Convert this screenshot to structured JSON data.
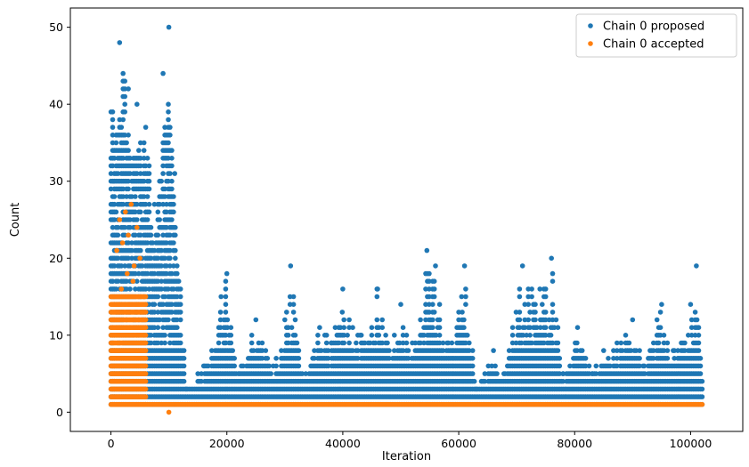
{
  "chart_data": {
    "type": "scatter",
    "title": "",
    "xlabel": "Iteration",
    "ylabel": "Count",
    "xlim": [
      -7000,
      109000
    ],
    "ylim": [
      -2.5,
      52.5
    ],
    "xticks": [
      0,
      20000,
      40000,
      60000,
      80000,
      100000
    ],
    "xtick_labels": [
      "0",
      "20000",
      "40000",
      "60000",
      "80000",
      "100000"
    ],
    "yticks": [
      0,
      10,
      20,
      30,
      40,
      50
    ],
    "ytick_labels": [
      "0",
      "10",
      "20",
      "30",
      "40",
      "50"
    ],
    "grid": false,
    "legend_position": "top-right",
    "legend": [
      "Chain 0 proposed",
      "Chain 0 accepted"
    ],
    "series": [
      {
        "name": "Chain 0 proposed",
        "color": "#1f77b4",
        "note_shape": "dense columns of integer counts per iteration",
        "x_range": [
          0,
          102000
        ],
        "envelope": [
          {
            "x": 0,
            "ymax": 39
          },
          {
            "x": 1500,
            "ymax": 48
          },
          {
            "x": 3000,
            "ymax": 42
          },
          {
            "x": 4500,
            "ymax": 40
          },
          {
            "x": 6000,
            "ymax": 37
          },
          {
            "x": 7500,
            "ymax": 27
          },
          {
            "x": 9000,
            "ymax": 44
          },
          {
            "x": 10000,
            "ymax": 50
          },
          {
            "x": 11000,
            "ymax": 31
          },
          {
            "x": 13000,
            "ymax": 3
          },
          {
            "x": 16000,
            "ymax": 6
          },
          {
            "x": 19000,
            "ymax": 15
          },
          {
            "x": 20000,
            "ymax": 18
          },
          {
            "x": 22000,
            "ymax": 5
          },
          {
            "x": 25000,
            "ymax": 12
          },
          {
            "x": 28000,
            "ymax": 6
          },
          {
            "x": 30000,
            "ymax": 12
          },
          {
            "x": 31000,
            "ymax": 19
          },
          {
            "x": 33000,
            "ymax": 5
          },
          {
            "x": 36000,
            "ymax": 11
          },
          {
            "x": 38000,
            "ymax": 9
          },
          {
            "x": 40000,
            "ymax": 16
          },
          {
            "x": 43000,
            "ymax": 10
          },
          {
            "x": 46000,
            "ymax": 16
          },
          {
            "x": 48000,
            "ymax": 8
          },
          {
            "x": 50000,
            "ymax": 14
          },
          {
            "x": 52000,
            "ymax": 9
          },
          {
            "x": 54500,
            "ymax": 21
          },
          {
            "x": 56000,
            "ymax": 19
          },
          {
            "x": 58000,
            "ymax": 9
          },
          {
            "x": 60500,
            "ymax": 15
          },
          {
            "x": 61000,
            "ymax": 19
          },
          {
            "x": 63000,
            "ymax": 3
          },
          {
            "x": 66000,
            "ymax": 8
          },
          {
            "x": 68000,
            "ymax": 5
          },
          {
            "x": 71000,
            "ymax": 19
          },
          {
            "x": 74000,
            "ymax": 16
          },
          {
            "x": 76000,
            "ymax": 20
          },
          {
            "x": 78000,
            "ymax": 5
          },
          {
            "x": 80500,
            "ymax": 11
          },
          {
            "x": 83000,
            "ymax": 5
          },
          {
            "x": 85000,
            "ymax": 8
          },
          {
            "x": 88000,
            "ymax": 9
          },
          {
            "x": 90000,
            "ymax": 12
          },
          {
            "x": 92000,
            "ymax": 6
          },
          {
            "x": 95000,
            "ymax": 14
          },
          {
            "x": 97000,
            "ymax": 8
          },
          {
            "x": 100000,
            "ymax": 14
          },
          {
            "x": 101000,
            "ymax": 19
          },
          {
            "x": 102000,
            "ymax": 4
          }
        ]
      },
      {
        "name": "Chain 0 accepted",
        "color": "#ff7f0e",
        "note_shape": "dense block of counts 1-15 early, constant near 1 afterwards",
        "segments": [
          {
            "x_range": [
              0,
              6000
            ],
            "ymin": 1,
            "ymax": 15
          },
          {
            "x_range": [
              6000,
              102000
            ],
            "ymin": 1,
            "ymax": 1
          }
        ],
        "scattered_points": [
          {
            "x": 1500,
            "y": 25
          },
          {
            "x": 2500,
            "y": 26
          },
          {
            "x": 3500,
            "y": 27
          },
          {
            "x": 4500,
            "y": 24
          },
          {
            "x": 2000,
            "y": 22
          },
          {
            "x": 3000,
            "y": 23
          },
          {
            "x": 5000,
            "y": 20
          },
          {
            "x": 1000,
            "y": 21
          },
          {
            "x": 4000,
            "y": 19
          },
          {
            "x": 2800,
            "y": 18
          },
          {
            "x": 3800,
            "y": 17
          },
          {
            "x": 1800,
            "y": 16
          },
          {
            "x": 10000,
            "y": 0
          }
        ]
      }
    ]
  }
}
